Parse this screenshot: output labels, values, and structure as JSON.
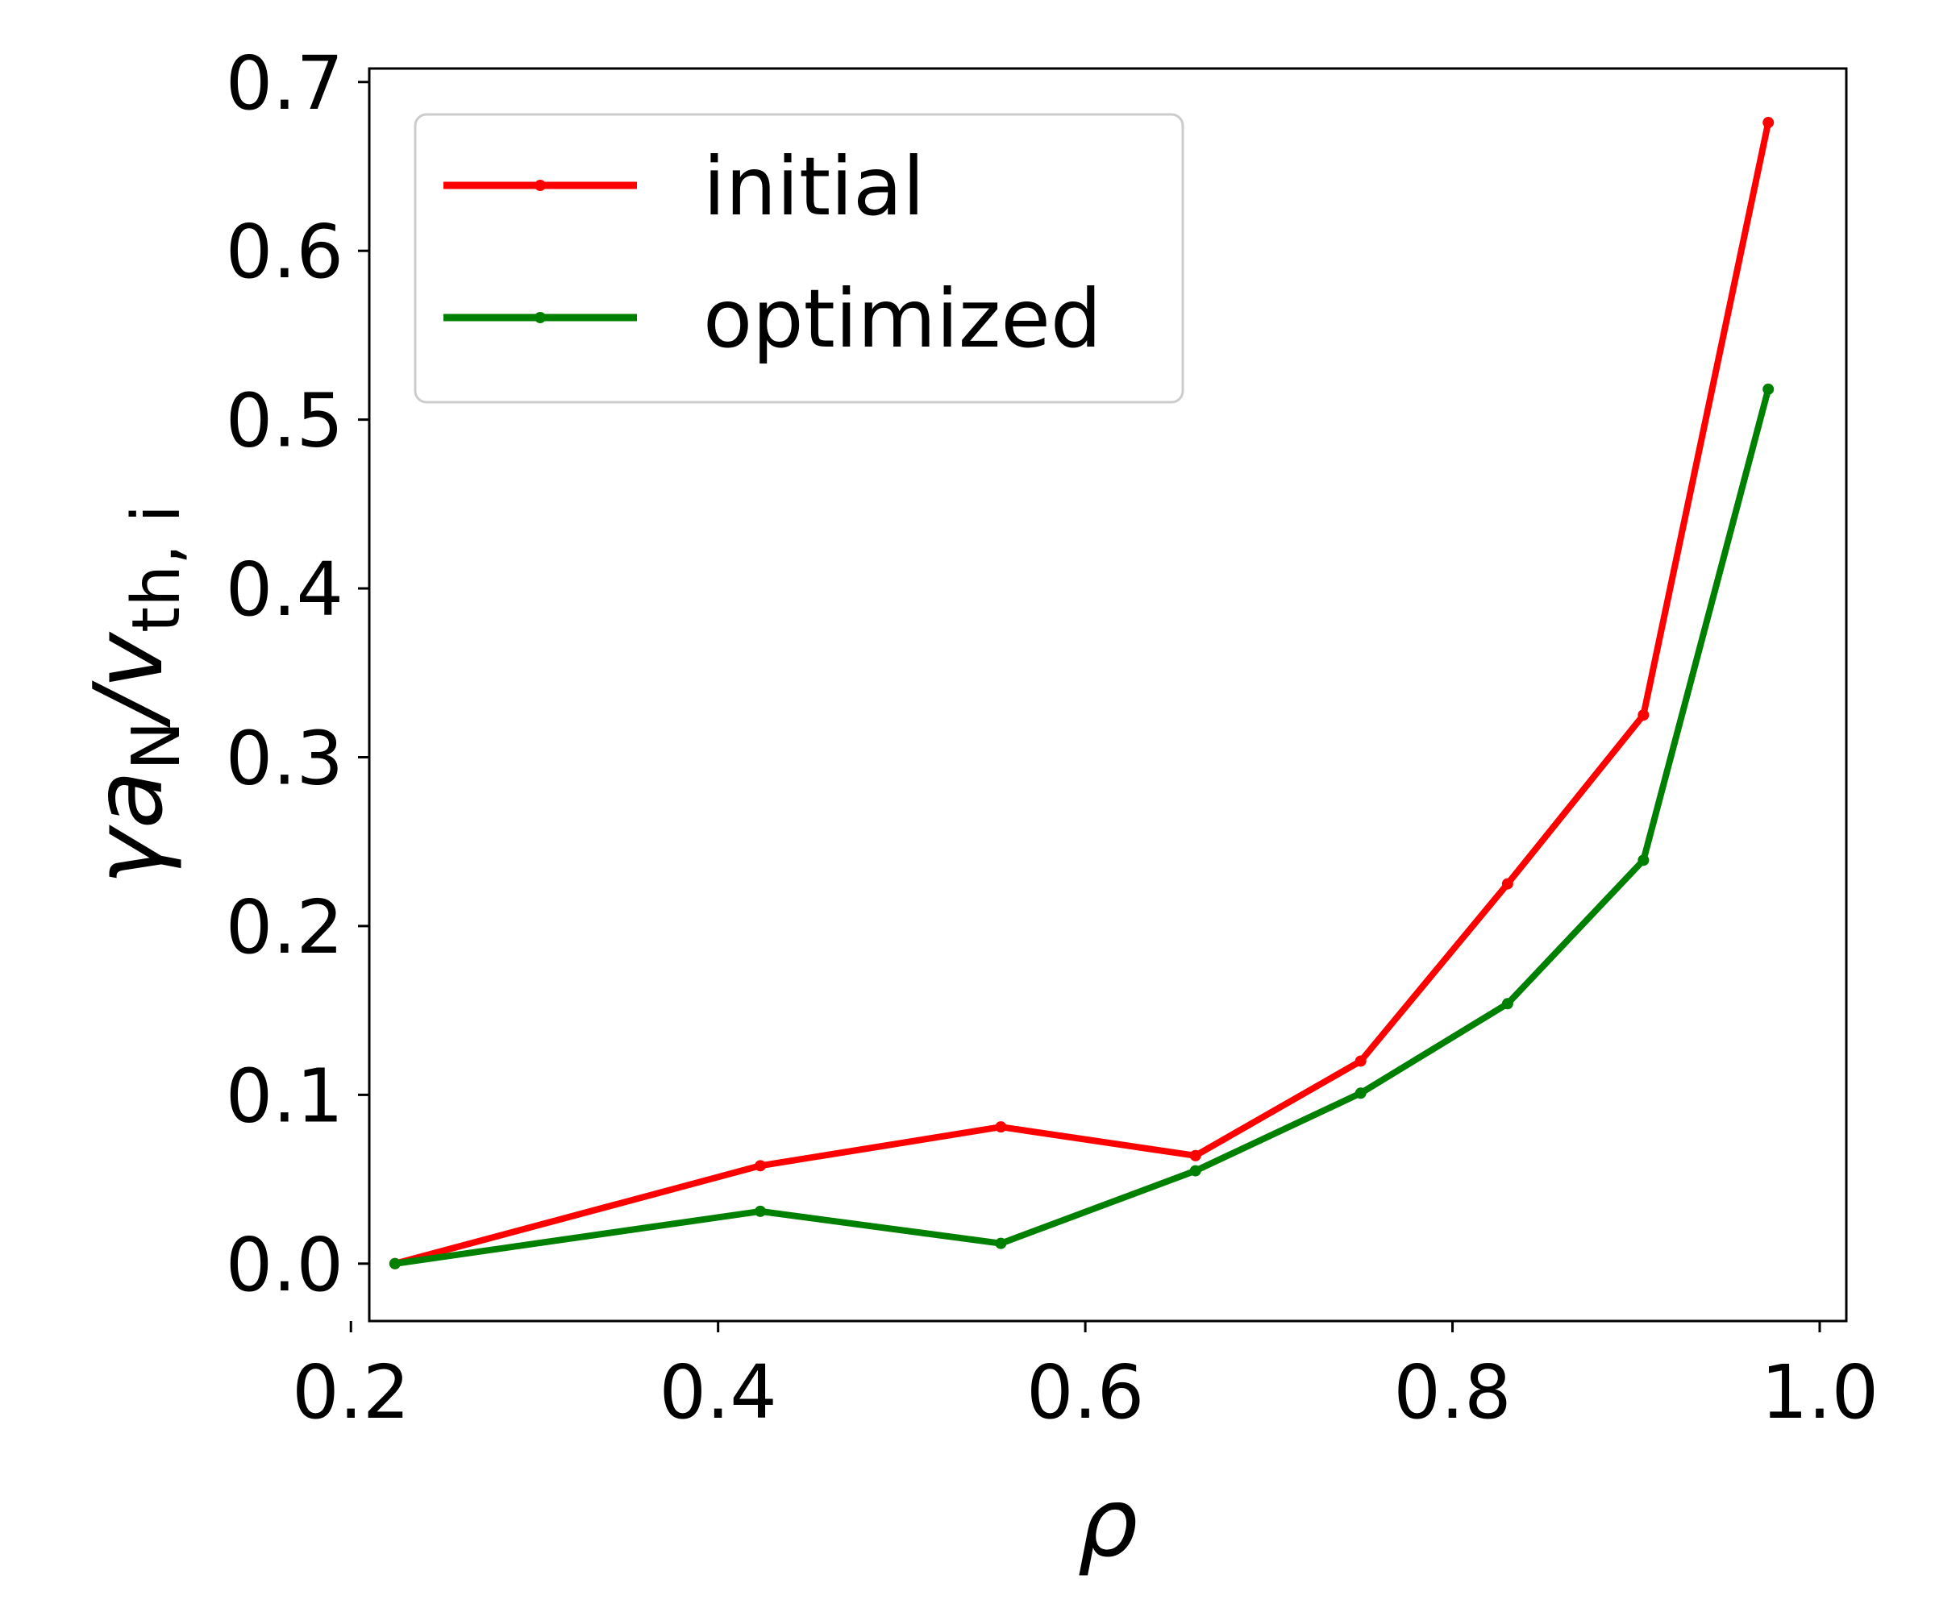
{
  "chart_data": {
    "type": "line",
    "xlabel": "ρ",
    "ylabel": {
      "base": "γa",
      "base_sub": "N",
      "sep": "/v",
      "sep_sub": "th, i"
    },
    "xlim": [
      0.21,
      1.0145
    ],
    "ylim": [
      -0.034,
      0.708
    ],
    "xticks": [
      {
        "value": 0.2,
        "label": "0.2"
      },
      {
        "value": 0.4,
        "label": "0.4"
      },
      {
        "value": 0.6,
        "label": "0.6"
      },
      {
        "value": 0.8,
        "label": "0.8"
      },
      {
        "value": 1.0,
        "label": "1.0"
      }
    ],
    "yticks": [
      {
        "value": 0.0,
        "label": "0.0"
      },
      {
        "value": 0.1,
        "label": "0.1"
      },
      {
        "value": 0.2,
        "label": "0.2"
      },
      {
        "value": 0.3,
        "label": "0.3"
      },
      {
        "value": 0.4,
        "label": "0.4"
      },
      {
        "value": 0.5,
        "label": "0.5"
      },
      {
        "value": 0.6,
        "label": "0.6"
      },
      {
        "value": 0.7,
        "label": "0.7"
      }
    ],
    "grid": false,
    "legend_position": "top-left",
    "x": [
      0.224,
      0.423,
      0.554,
      0.66,
      0.75,
      0.83,
      0.904,
      0.972
    ],
    "series": [
      {
        "name": "initial",
        "color": "#ff0000",
        "values": [
          0.0,
          0.058,
          0.081,
          0.064,
          0.12,
          0.225,
          0.325,
          0.676
        ]
      },
      {
        "name": "optimized",
        "color": "#008000",
        "values": [
          0.0,
          0.031,
          0.012,
          0.055,
          0.101,
          0.154,
          0.239,
          0.518
        ]
      }
    ]
  }
}
